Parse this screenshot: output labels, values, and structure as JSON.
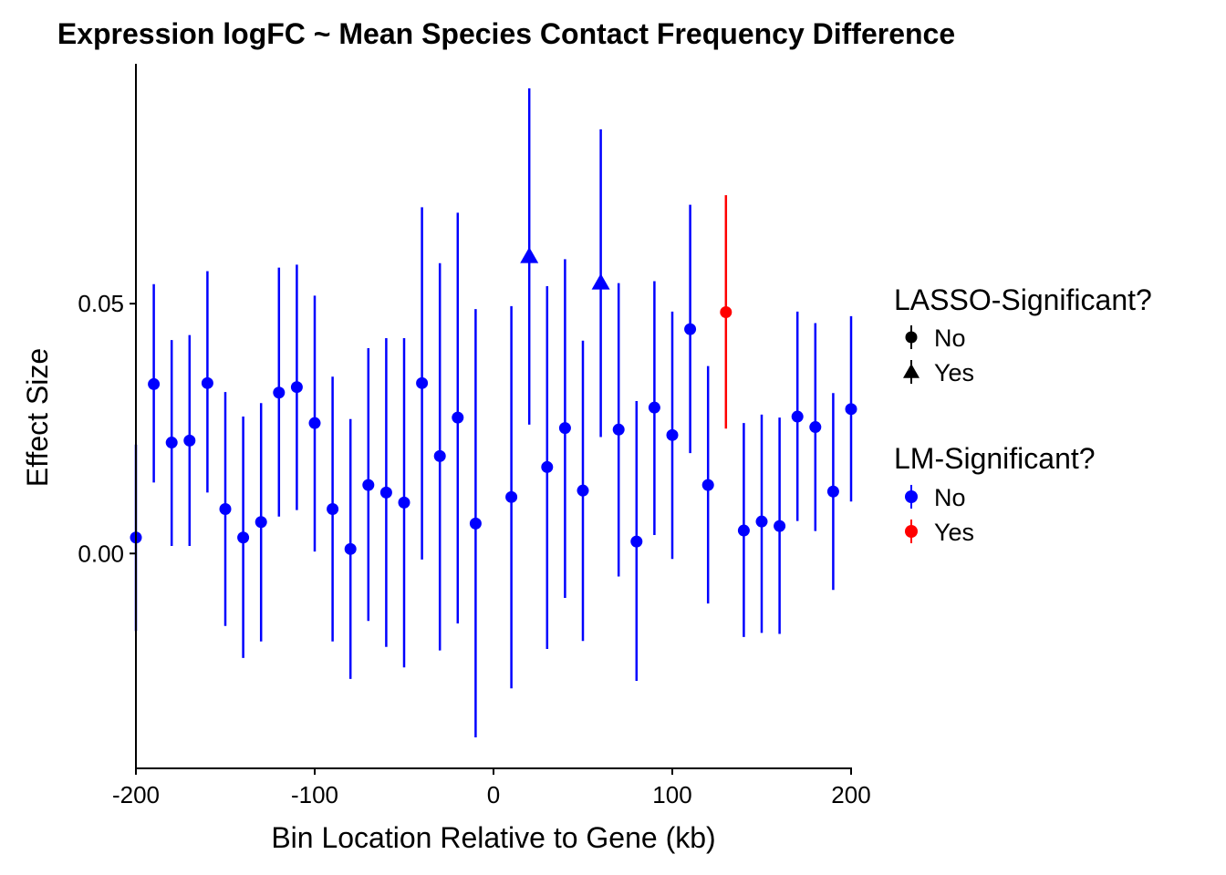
{
  "chart_data": {
    "type": "scatter",
    "title": "Expression logFC ~ Mean Species Contact Frequency Difference",
    "xlabel": "Bin Location Relative to Gene (kb)",
    "ylabel": "Effect Size",
    "xlim": [
      -200,
      200
    ],
    "ylim": [
      -0.043,
      0.098
    ],
    "x_ticks": [
      -200,
      -100,
      0,
      100,
      200
    ],
    "y_ticks": [
      0.0,
      0.05
    ],
    "x_tick_labels": [
      "-200",
      "-100",
      "0",
      "100",
      "200"
    ],
    "y_tick_labels": [
      "0.00",
      "0.05"
    ],
    "grid": false,
    "legend_position": "right",
    "colors": {
      "no": "#0000FF",
      "yes": "#FF0000"
    },
    "legends": [
      {
        "title": "LASSO-Significant?",
        "entries": [
          {
            "label": "No",
            "shape": "circle"
          },
          {
            "label": "Yes",
            "shape": "triangle"
          }
        ]
      },
      {
        "title": "LM-Significant?",
        "entries": [
          {
            "label": "No",
            "color": "#0000FF"
          },
          {
            "label": "Yes",
            "color": "#FF0000"
          }
        ]
      }
    ],
    "points": [
      {
        "x": -200,
        "y": 0.0032,
        "ymin": -0.0155,
        "ymax": 0.0218,
        "lasso": "No",
        "lm": "No"
      },
      {
        "x": -190,
        "y": 0.0339,
        "ymin": 0.0142,
        "ymax": 0.0539,
        "lasso": "No",
        "lm": "No"
      },
      {
        "x": -180,
        "y": 0.0222,
        "ymin": 0.0015,
        "ymax": 0.0427,
        "lasso": "No",
        "lm": "No"
      },
      {
        "x": -170,
        "y": 0.0226,
        "ymin": 0.0015,
        "ymax": 0.0437,
        "lasso": "No",
        "lm": "No"
      },
      {
        "x": -160,
        "y": 0.0341,
        "ymin": 0.0122,
        "ymax": 0.0565,
        "lasso": "No",
        "lm": "No"
      },
      {
        "x": -150,
        "y": 0.0089,
        "ymin": -0.0145,
        "ymax": 0.0323,
        "lasso": "No",
        "lm": "No"
      },
      {
        "x": -140,
        "y": 0.0032,
        "ymin": -0.0209,
        "ymax": 0.0274,
        "lasso": "No",
        "lm": "No"
      },
      {
        "x": -130,
        "y": 0.0063,
        "ymin": -0.0176,
        "ymax": 0.0301,
        "lasso": "No",
        "lm": "No"
      },
      {
        "x": -120,
        "y": 0.0322,
        "ymin": 0.0074,
        "ymax": 0.0572,
        "lasso": "No",
        "lm": "No"
      },
      {
        "x": -110,
        "y": 0.0333,
        "ymin": 0.0087,
        "ymax": 0.0578,
        "lasso": "No",
        "lm": "No"
      },
      {
        "x": -100,
        "y": 0.0261,
        "ymin": 0.0004,
        "ymax": 0.0516,
        "lasso": "No",
        "lm": "No"
      },
      {
        "x": -90,
        "y": 0.0089,
        "ymin": -0.0176,
        "ymax": 0.0354,
        "lasso": "No",
        "lm": "No"
      },
      {
        "x": -80,
        "y": 0.0009,
        "ymin": -0.0251,
        "ymax": 0.0269,
        "lasso": "No",
        "lm": "No"
      },
      {
        "x": -70,
        "y": 0.0137,
        "ymin": -0.0135,
        "ymax": 0.0411,
        "lasso": "No",
        "lm": "No"
      },
      {
        "x": -60,
        "y": 0.0122,
        "ymin": -0.0187,
        "ymax": 0.0431,
        "lasso": "No",
        "lm": "No"
      },
      {
        "x": -50,
        "y": 0.0102,
        "ymin": -0.0228,
        "ymax": 0.0431,
        "lasso": "No",
        "lm": "No"
      },
      {
        "x": -40,
        "y": 0.0341,
        "ymin": -0.0012,
        "ymax": 0.0693,
        "lasso": "No",
        "lm": "No"
      },
      {
        "x": -30,
        "y": 0.0195,
        "ymin": -0.0194,
        "ymax": 0.0581,
        "lasso": "No",
        "lm": "No"
      },
      {
        "x": -20,
        "y": 0.0272,
        "ymin": -0.014,
        "ymax": 0.0682,
        "lasso": "No",
        "lm": "No"
      },
      {
        "x": -10,
        "y": 0.006,
        "ymin": -0.0368,
        "ymax": 0.0489,
        "lasso": "No",
        "lm": "No"
      },
      {
        "x": 10,
        "y": 0.0113,
        "ymin": -0.027,
        "ymax": 0.0495,
        "lasso": "No",
        "lm": "No"
      },
      {
        "x": 20,
        "y": 0.0595,
        "ymin": 0.0258,
        "ymax": 0.0931,
        "lasso": "Yes",
        "lm": "No"
      },
      {
        "x": 30,
        "y": 0.0173,
        "ymin": -0.0191,
        "ymax": 0.0535,
        "lasso": "No",
        "lm": "No"
      },
      {
        "x": 40,
        "y": 0.0251,
        "ymin": -0.0089,
        "ymax": 0.0589,
        "lasso": "No",
        "lm": "No"
      },
      {
        "x": 50,
        "y": 0.0126,
        "ymin": -0.0175,
        "ymax": 0.0426,
        "lasso": "No",
        "lm": "No"
      },
      {
        "x": 60,
        "y": 0.0542,
        "ymin": 0.0233,
        "ymax": 0.0849,
        "lasso": "Yes",
        "lm": "No"
      },
      {
        "x": 70,
        "y": 0.0248,
        "ymin": -0.0046,
        "ymax": 0.0541,
        "lasso": "No",
        "lm": "No"
      },
      {
        "x": 80,
        "y": 0.0024,
        "ymin": -0.0255,
        "ymax": 0.0305,
        "lasso": "No",
        "lm": "No"
      },
      {
        "x": 90,
        "y": 0.0292,
        "ymin": 0.0037,
        "ymax": 0.0545,
        "lasso": "No",
        "lm": "No"
      },
      {
        "x": 100,
        "y": 0.0237,
        "ymin": -0.0011,
        "ymax": 0.0484,
        "lasso": "No",
        "lm": "No"
      },
      {
        "x": 110,
        "y": 0.0449,
        "ymin": 0.0201,
        "ymax": 0.0698,
        "lasso": "No",
        "lm": "No"
      },
      {
        "x": 120,
        "y": 0.0137,
        "ymin": -0.01,
        "ymax": 0.0375,
        "lasso": "No",
        "lm": "No"
      },
      {
        "x": 130,
        "y": 0.0483,
        "ymin": 0.025,
        "ymax": 0.0717,
        "lasso": "No",
        "lm": "Yes"
      },
      {
        "x": 140,
        "y": 0.0046,
        "ymin": -0.0167,
        "ymax": 0.0261,
        "lasso": "No",
        "lm": "No"
      },
      {
        "x": 150,
        "y": 0.0064,
        "ymin": -0.0159,
        "ymax": 0.0278,
        "lasso": "No",
        "lm": "No"
      },
      {
        "x": 160,
        "y": 0.0055,
        "ymin": -0.0161,
        "ymax": 0.0272,
        "lasso": "No",
        "lm": "No"
      },
      {
        "x": 170,
        "y": 0.0274,
        "ymin": 0.0065,
        "ymax": 0.0484,
        "lasso": "No",
        "lm": "No"
      },
      {
        "x": 180,
        "y": 0.0253,
        "ymin": 0.0045,
        "ymax": 0.0461,
        "lasso": "No",
        "lm": "No"
      },
      {
        "x": 190,
        "y": 0.0124,
        "ymin": -0.0073,
        "ymax": 0.0321,
        "lasso": "No",
        "lm": "No"
      },
      {
        "x": 200,
        "y": 0.0289,
        "ymin": 0.0104,
        "ymax": 0.0475,
        "lasso": "No",
        "lm": "No"
      }
    ]
  }
}
